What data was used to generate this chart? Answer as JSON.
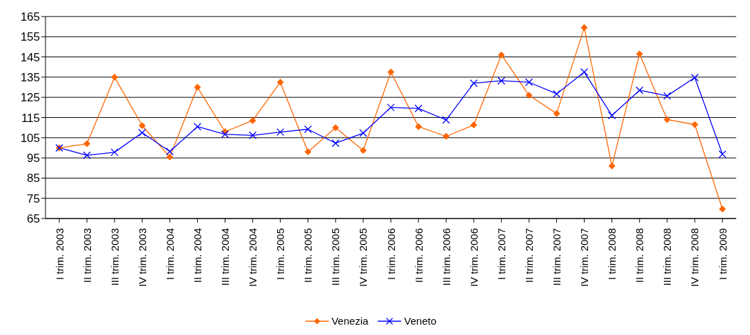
{
  "chart_data": {
    "type": "line",
    "categories": [
      "I trim. 2003",
      "II trim. 2003",
      "III trim. 2003",
      "IV trim. 2003",
      "I trim. 2004",
      "II trim. 2004",
      "III trim. 2004",
      "IV trim. 2004",
      "I trim. 2005",
      "II trim. 2005",
      "III trim. 2005",
      "IV trim. 2005",
      "I trim. 2006",
      "II trim. 2006",
      "III trim. 2006",
      "IV trim. 2006",
      "I trim. 2007",
      "II trim. 2007",
      "III trim. 2007",
      "IV trim. 2007",
      "I trim. 2008",
      "II trim. 2008",
      "III trim. 2008",
      "IV trim. 2008",
      "I trim. 2009"
    ],
    "series": [
      {
        "name": "Venezia",
        "color": "#ff6600",
        "marker": "diamond",
        "values": [
          100,
          102,
          135,
          111,
          95.5,
          130,
          108,
          113.5,
          132.5,
          98,
          110,
          98.7,
          137.5,
          110.5,
          105.7,
          111.3,
          146,
          126,
          117,
          159.5,
          91,
          146.5,
          114,
          111.5,
          69.7
        ]
      },
      {
        "name": "Veneto",
        "color": "#0000ff",
        "marker": "cross",
        "values": [
          100,
          96.3,
          97.8,
          107.5,
          98.2,
          110.5,
          106.7,
          106.2,
          107.8,
          109.2,
          102.3,
          107.3,
          120,
          119.5,
          113.8,
          132,
          133.2,
          132.5,
          126.7,
          137.5,
          116,
          128.5,
          125.7,
          134.8,
          96.8
        ]
      }
    ],
    "ylim": [
      65,
      165
    ],
    "yticks": [
      65,
      75,
      85,
      95,
      105,
      115,
      125,
      135,
      145,
      155,
      165
    ],
    "grid": "y",
    "legend": "bottom",
    "line_style": "solid"
  }
}
